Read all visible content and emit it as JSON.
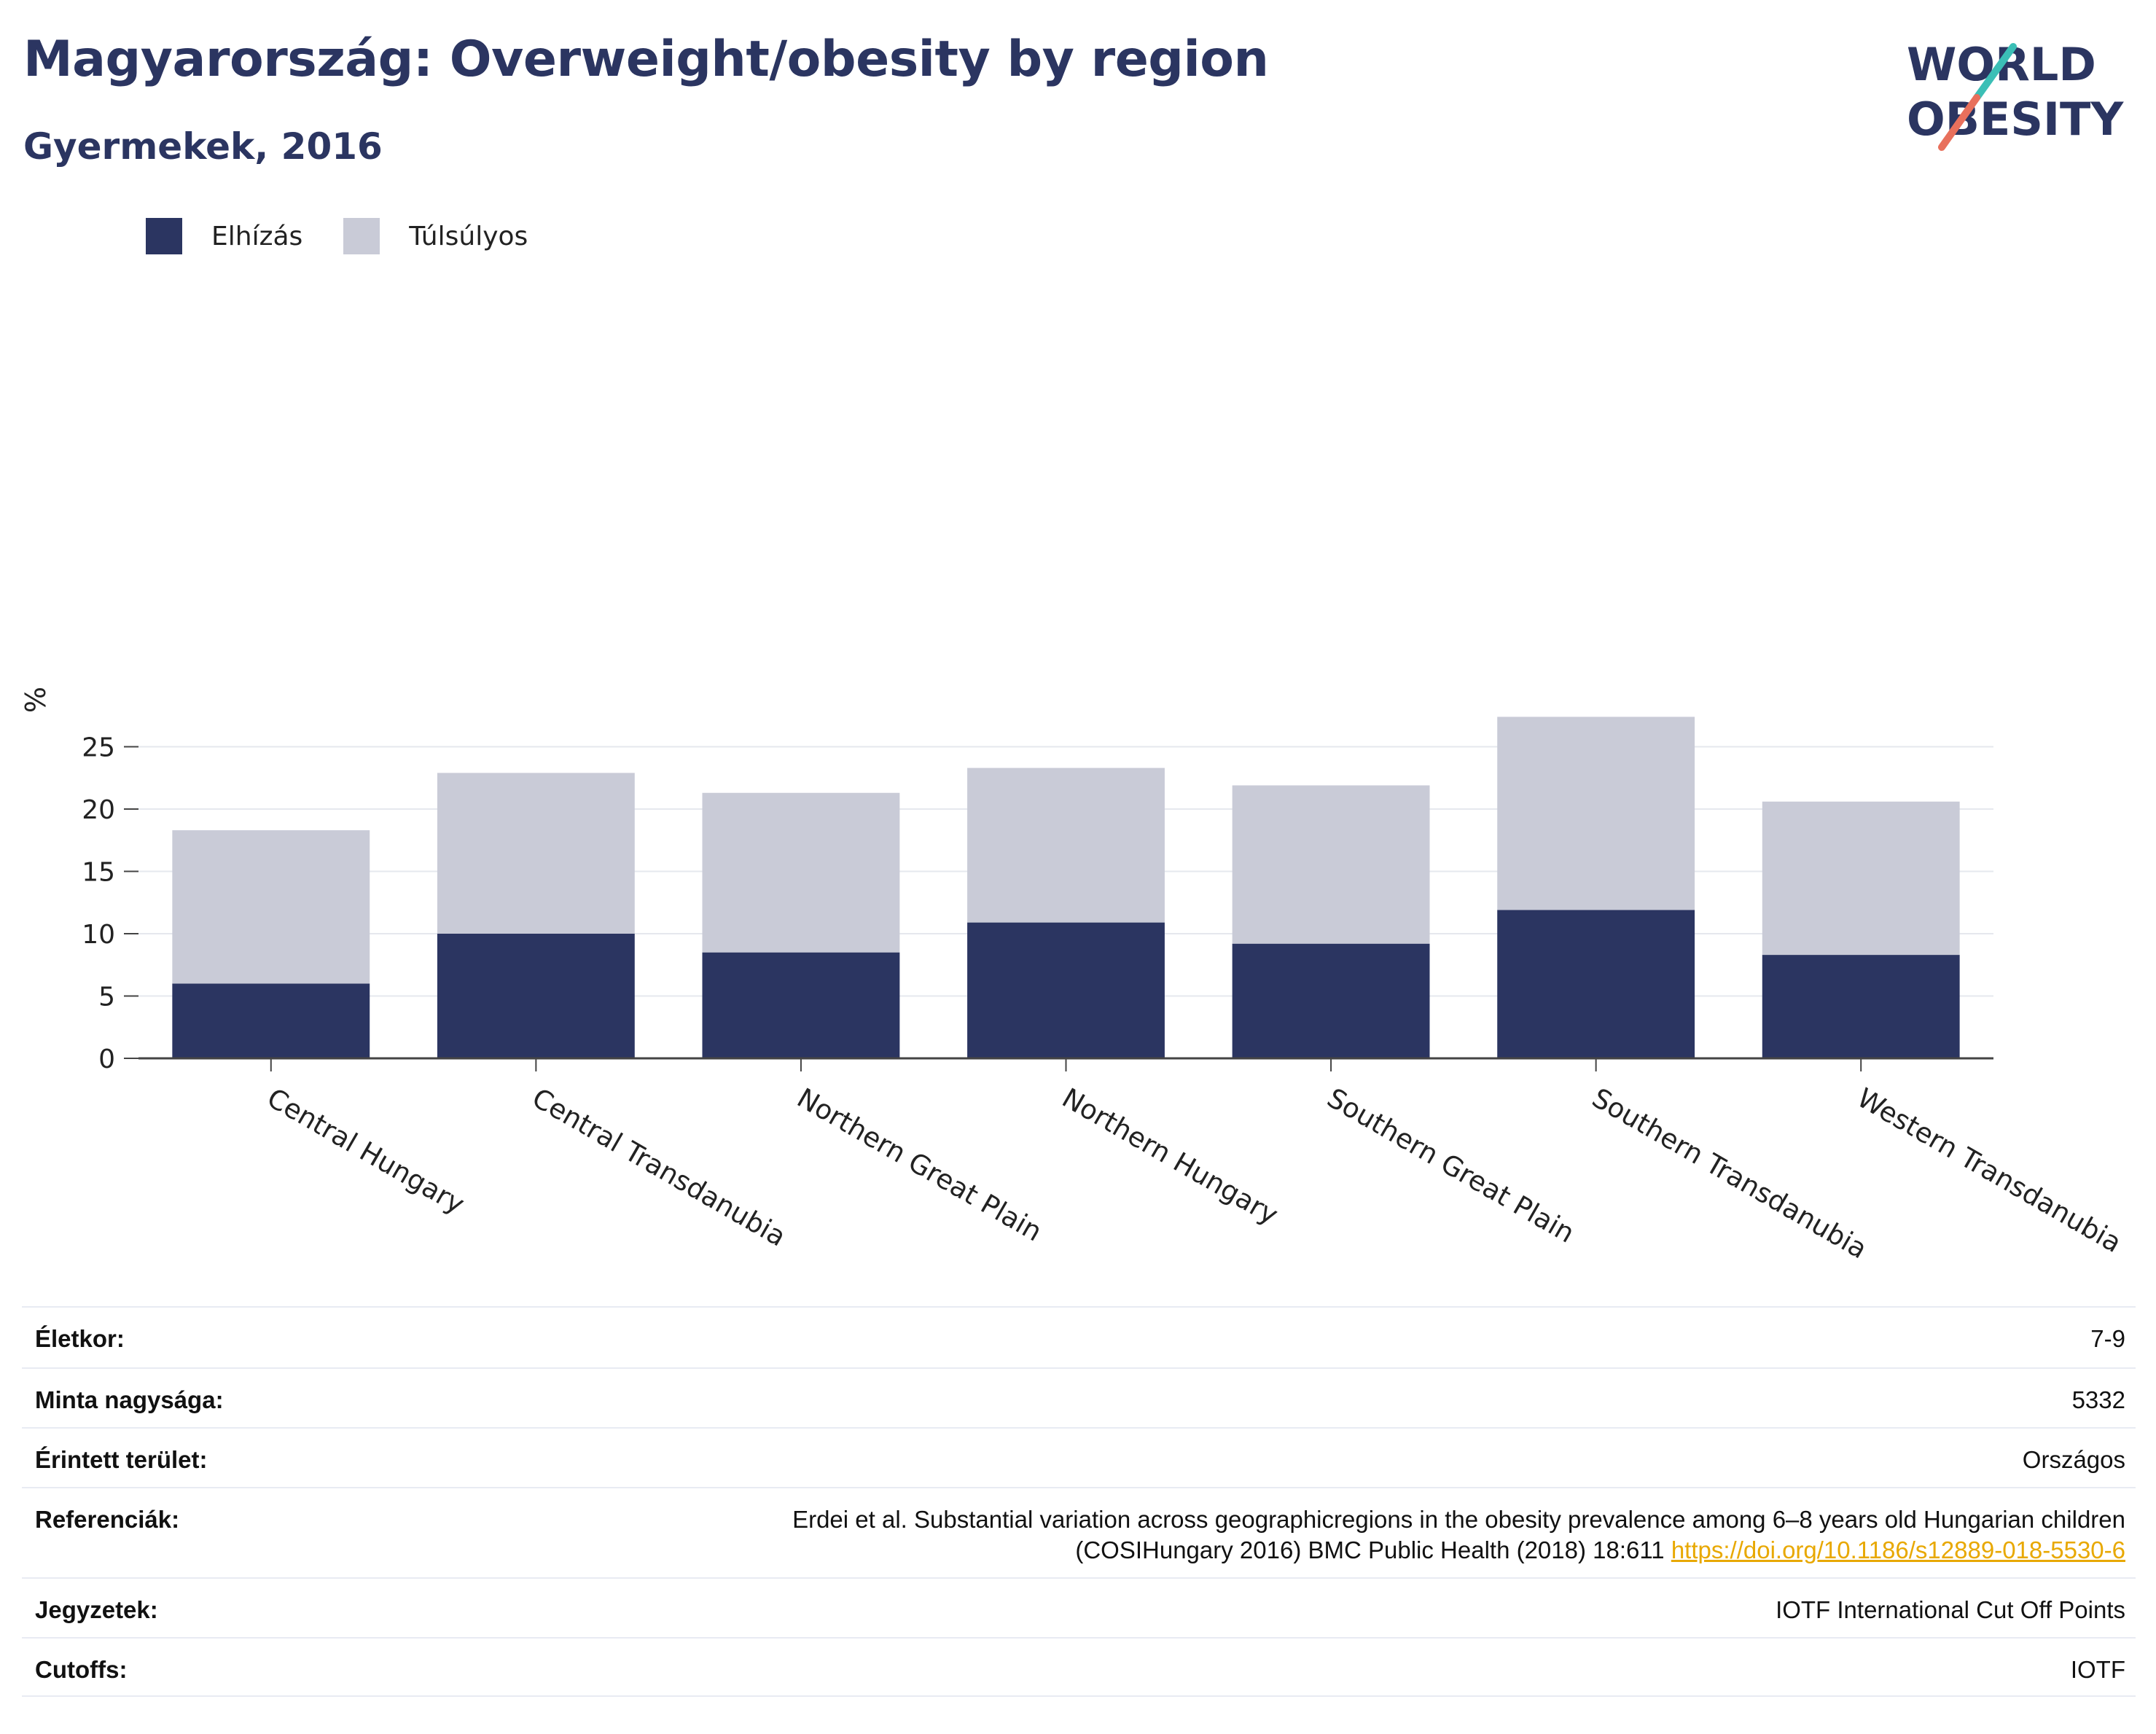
{
  "header": {
    "title": "Magyarország: Overweight/obesity by region",
    "subtitle": "Gyermekek, 2016"
  },
  "logo": {
    "line1": "WORLD",
    "line2": "OBESITY",
    "icon": "world-obesity-logo"
  },
  "colors": {
    "obesity": "#2b3561",
    "overweight": "#c9cbd7",
    "title": "#2b3561",
    "link": "#e8a800"
  },
  "chart_data": {
    "type": "bar",
    "stacked": true,
    "categories": [
      "Central Hungary",
      "Central Transdanubia",
      "Northern Great Plain",
      "Northern Hungary",
      "Southern Great Plain",
      "Southern Transdanubia",
      "Western Transdanubia"
    ],
    "series": [
      {
        "name": "Elhízás",
        "values": [
          6.0,
          10.0,
          8.5,
          10.9,
          9.2,
          11.9,
          8.3
        ]
      },
      {
        "name": "Túlsúlyos",
        "values": [
          12.3,
          12.9,
          12.8,
          12.4,
          12.7,
          15.5,
          12.3
        ]
      }
    ],
    "ylabel": "%",
    "ylim": [
      0,
      27.5
    ],
    "yticks": [
      0,
      5,
      10,
      15,
      20,
      25
    ],
    "grid": true,
    "legend": "top-left"
  },
  "meta": [
    {
      "label": "Életkor:",
      "value": "7-9"
    },
    {
      "label": "Minta nagysága:",
      "value": "5332"
    },
    {
      "label": "Érintett terület:",
      "value": "Országos"
    },
    {
      "label": "Referenciák:",
      "value_line1": "Erdei et al. Substantial variation across geographicregions in the obesity prevalence among 6–8 years old Hungarian children",
      "value_line2": "(COSIHungary 2016) BMC Public Health (2018) 18:611 ",
      "link": "https://doi.org/10.1186/s12889-018-5530-6"
    },
    {
      "label": "Jegyzetek:",
      "value": "IOTF International Cut Off Points"
    },
    {
      "label": "Cutoffs:",
      "value": "IOTF"
    }
  ]
}
